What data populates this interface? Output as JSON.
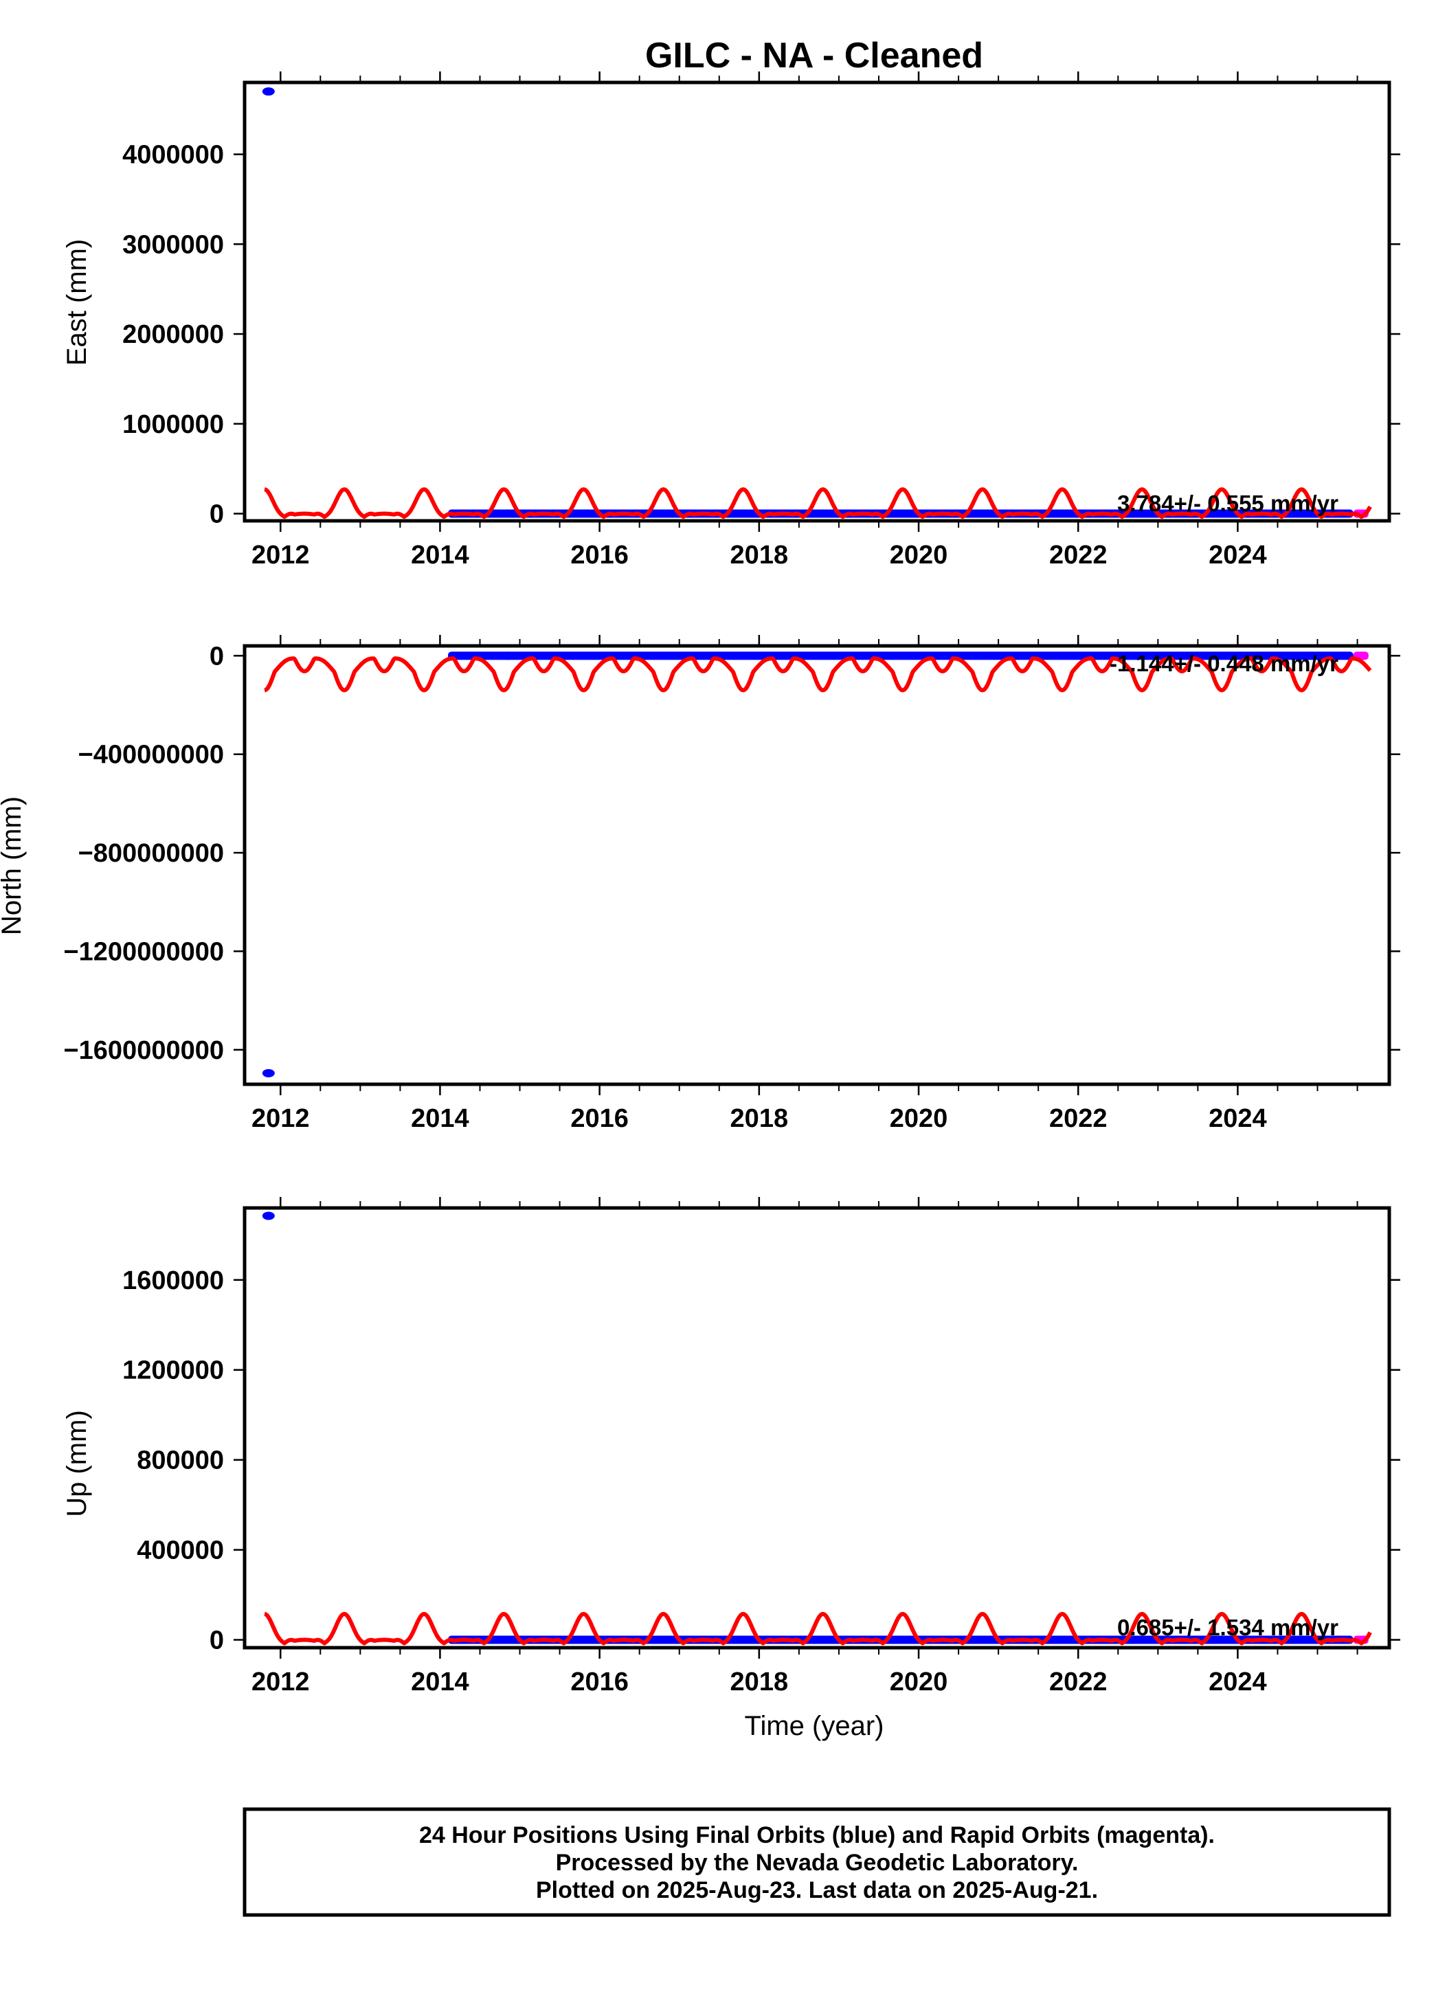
{
  "title": "GILC  - NA - Cleaned",
  "colors": {
    "final_orbits": "#0000ff",
    "rapid_orbits": "#ff00ff",
    "model": "#ff0000",
    "frame": "#000000"
  },
  "xlabel": "Time (year)",
  "footer": {
    "line1": "24 Hour Positions Using Final Orbits (blue) and Rapid Orbits (magenta).",
    "line2": "Processed by the Nevada Geodetic Laboratory.",
    "line3": "Plotted on 2025-Aug-23. Last data on 2025-Aug-21."
  },
  "chart_data": [
    {
      "type": "scatter",
      "component": "east",
      "ylabel": "East (mm)",
      "rate_label": "3.784+/- 0.555 mm/yr",
      "xlim": [
        2011.55,
        2025.9
      ],
      "ylim": [
        -80000,
        4800000
      ],
      "x_ticks": [
        "2012",
        "2014",
        "2016",
        "2018",
        "2020",
        "2022",
        "2024"
      ],
      "y_ticks": [
        "0",
        "1000000",
        "2000000",
        "3000000",
        "4000000"
      ],
      "grid": false,
      "outliers": [
        {
          "x": 2011.85,
          "y": 4700000
        }
      ],
      "data_start": 2014.1,
      "data_end": 2025.64,
      "rapid_start": 2025.45,
      "gap_points": [
        2014.85,
        2019.55
      ],
      "seasonal_model": {
        "amplitude_positive": 270000,
        "amplitude_negative": 70000
      }
    },
    {
      "type": "scatter",
      "component": "north",
      "ylabel": "North (mm)",
      "rate_label": "-1.144+/- 0.448 mm/yr",
      "xlim": [
        2011.55,
        2025.9
      ],
      "ylim": [
        -1740000000,
        40000000
      ],
      "x_ticks": [
        "2012",
        "2014",
        "2016",
        "2018",
        "2020",
        "2022",
        "2024"
      ],
      "y_ticks": [
        "0",
        "−400000000",
        "−800000000",
        "−1200000000",
        "−1600000000"
      ],
      "grid": false,
      "outliers": [
        {
          "x": 2011.85,
          "y": -1695000000
        }
      ],
      "data_start": 2014.1,
      "data_end": 2025.64,
      "rapid_start": 2025.45,
      "gap_points": [
        2014.85,
        2019.55
      ],
      "seasonal_model": {
        "amplitude_positive": 25000000,
        "amplitude_negative": 140000000
      }
    },
    {
      "type": "scatter",
      "component": "up",
      "ylabel": "Up (mm)",
      "rate_label": "0.685+/- 1.534 mm/yr",
      "xlim": [
        2011.55,
        2025.9
      ],
      "ylim": [
        -35000,
        1920000
      ],
      "x_ticks": [
        "2012",
        "2014",
        "2016",
        "2018",
        "2020",
        "2022",
        "2024"
      ],
      "y_ticks": [
        "0",
        "400000",
        "800000",
        "1200000",
        "1600000"
      ],
      "grid": false,
      "outliers": [
        {
          "x": 2011.85,
          "y": 1885000
        }
      ],
      "data_start": 2014.1,
      "data_end": 2025.64,
      "rapid_start": 2025.45,
      "gap_points": [
        2014.85,
        2019.55
      ],
      "seasonal_model": {
        "amplitude_positive": 115000,
        "amplitude_negative": 30000
      }
    }
  ]
}
